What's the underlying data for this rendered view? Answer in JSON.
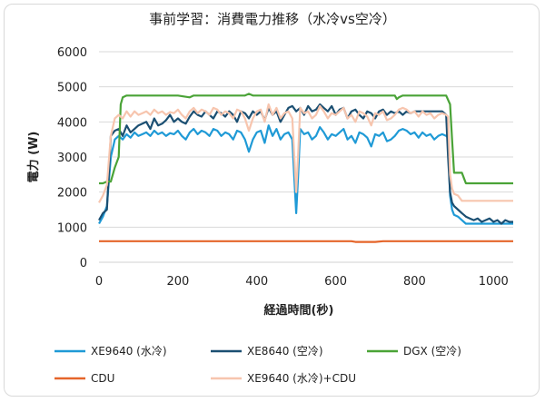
{
  "chart_data": {
    "type": "line",
    "title": "事前学習：消費電力推移（水冷vs空冷）",
    "xlabel": "経過時間(秒)",
    "ylabel": "電力 (W)",
    "xlim": [
      0,
      1050
    ],
    "ylim": [
      0,
      6000
    ],
    "x_ticks": [
      0,
      200,
      400,
      600,
      800,
      1000
    ],
    "y_ticks": [
      0,
      1000,
      2000,
      3000,
      4000,
      5000,
      6000
    ],
    "x_tick_labels": [
      "0",
      "200",
      "400",
      "600",
      "800",
      "1000"
    ],
    "y_tick_labels": [
      "0",
      "1000",
      "2000",
      "3000",
      "4000",
      "5000",
      "6000"
    ],
    "grid": "horizontal",
    "legend_position": "bottom",
    "series": [
      {
        "name": "XE9640 (水冷)",
        "color": "#1f9ad6",
        "x": [
          0,
          10,
          20,
          30,
          40,
          50,
          60,
          70,
          80,
          90,
          100,
          110,
          120,
          130,
          140,
          150,
          160,
          170,
          180,
          190,
          200,
          210,
          220,
          230,
          240,
          250,
          260,
          270,
          280,
          290,
          300,
          310,
          320,
          330,
          340,
          350,
          360,
          370,
          380,
          390,
          400,
          410,
          420,
          430,
          440,
          450,
          460,
          470,
          480,
          490,
          495,
          500,
          505,
          510,
          520,
          530,
          540,
          550,
          560,
          570,
          580,
          590,
          600,
          610,
          620,
          630,
          640,
          650,
          660,
          670,
          680,
          690,
          700,
          710,
          720,
          730,
          740,
          750,
          760,
          770,
          780,
          790,
          800,
          810,
          820,
          830,
          840,
          850,
          860,
          870,
          880,
          885,
          890,
          895,
          900,
          910,
          920,
          930,
          940,
          950,
          1000,
          1050
        ],
        "y": [
          1100,
          1300,
          1600,
          3000,
          3500,
          3600,
          3500,
          3650,
          3550,
          3700,
          3600,
          3650,
          3700,
          3600,
          3750,
          3650,
          3700,
          3600,
          3680,
          3650,
          3750,
          3600,
          3500,
          3700,
          3800,
          3650,
          3750,
          3700,
          3600,
          3800,
          3750,
          3600,
          3700,
          3650,
          3500,
          3750,
          3700,
          3500,
          3150,
          3500,
          3700,
          3750,
          3400,
          3900,
          3600,
          3800,
          3500,
          3650,
          3700,
          3500,
          2400,
          1400,
          2500,
          3800,
          3650,
          3700,
          3500,
          3600,
          3850,
          3700,
          3500,
          3650,
          3600,
          3700,
          3800,
          3500,
          3600,
          3400,
          3700,
          3650,
          3550,
          3300,
          3650,
          3600,
          3700,
          3450,
          3500,
          3600,
          3750,
          3800,
          3750,
          3650,
          3700,
          3550,
          3700,
          3600,
          3650,
          3500,
          3600,
          3650,
          3600,
          3550,
          1900,
          1500,
          1350,
          1300,
          1200,
          1100,
          1100,
          1100,
          1100,
          1100
        ]
      },
      {
        "name": "XE8640 (空冷)",
        "color": "#1b4f72",
        "x": [
          0,
          10,
          20,
          30,
          40,
          50,
          60,
          70,
          80,
          90,
          100,
          110,
          120,
          130,
          140,
          150,
          160,
          170,
          180,
          190,
          200,
          210,
          220,
          230,
          240,
          250,
          260,
          270,
          280,
          290,
          300,
          310,
          320,
          330,
          340,
          350,
          360,
          370,
          380,
          390,
          400,
          410,
          420,
          430,
          440,
          450,
          460,
          470,
          480,
          490,
          500,
          510,
          520,
          530,
          540,
          550,
          560,
          570,
          580,
          590,
          600,
          610,
          620,
          630,
          640,
          650,
          660,
          670,
          680,
          690,
          700,
          710,
          720,
          730,
          740,
          750,
          760,
          770,
          780,
          790,
          800,
          810,
          820,
          830,
          840,
          850,
          860,
          870,
          880,
          885,
          890,
          895,
          900,
          910,
          920,
          930,
          940,
          950,
          960,
          970,
          980,
          990,
          1000,
          1010,
          1020,
          1030,
          1040,
          1050
        ],
        "y": [
          1200,
          1400,
          1500,
          3600,
          3750,
          3800,
          3600,
          3900,
          3700,
          3800,
          3900,
          3950,
          4000,
          3800,
          4100,
          3900,
          3950,
          4050,
          4200,
          4000,
          4100,
          4000,
          3950,
          4150,
          4300,
          4200,
          4150,
          4300,
          4200,
          4100,
          4300,
          4250,
          4150,
          4300,
          4200,
          4000,
          4300,
          4250,
          4100,
          4300,
          4200,
          4300,
          4050,
          4400,
          4200,
          4300,
          4000,
          4200,
          4400,
          4450,
          4300,
          4400,
          4200,
          4450,
          4300,
          4350,
          4500,
          4400,
          4300,
          4450,
          4200,
          4350,
          4400,
          4100,
          4300,
          4350,
          4200,
          4100,
          4300,
          4250,
          4100,
          4300,
          4350,
          4200,
          4300,
          4250,
          4300,
          4200,
          4300,
          4250,
          4300,
          4300,
          4300,
          4300,
          4300,
          4300,
          4300,
          4300,
          4200,
          3000,
          2000,
          1700,
          1600,
          1500,
          1400,
          1300,
          1250,
          1200,
          1250,
          1150,
          1200,
          1250,
          1150,
          1200,
          1100,
          1200,
          1150,
          1150
        ]
      },
      {
        "name": "DGX (空冷)",
        "color": "#4aa337",
        "x": [
          0,
          10,
          20,
          30,
          40,
          50,
          55,
          60,
          70,
          80,
          100,
          150,
          200,
          230,
          240,
          300,
          350,
          370,
          380,
          390,
          400,
          450,
          500,
          550,
          600,
          650,
          700,
          750,
          755,
          760,
          770,
          780,
          800,
          850,
          880,
          890,
          895,
          900,
          920,
          925,
          930,
          1000,
          1050
        ],
        "y": [
          2250,
          2250,
          2300,
          2300,
          2700,
          3000,
          4500,
          4700,
          4750,
          4750,
          4750,
          4750,
          4750,
          4700,
          4750,
          4750,
          4750,
          4750,
          4800,
          4750,
          4750,
          4750,
          4750,
          4750,
          4750,
          4750,
          4750,
          4750,
          4650,
          4700,
          4750,
          4750,
          4750,
          4750,
          4750,
          4500,
          3500,
          2550,
          2550,
          2400,
          2250,
          2250,
          2250
        ]
      },
      {
        "name": "CDU",
        "color": "#e5652a",
        "x": [
          0,
          100,
          200,
          300,
          400,
          500,
          600,
          640,
          650,
          700,
          720,
          800,
          900,
          1000,
          1050
        ],
        "y": [
          600,
          600,
          600,
          600,
          600,
          600,
          600,
          600,
          580,
          580,
          600,
          600,
          600,
          600,
          600
        ]
      },
      {
        "name": "XE9640 (水冷)+CDU",
        "color": "#f7c5ae",
        "x": [
          0,
          10,
          20,
          30,
          40,
          50,
          60,
          70,
          80,
          90,
          100,
          110,
          120,
          130,
          140,
          150,
          160,
          170,
          180,
          190,
          200,
          210,
          220,
          230,
          240,
          250,
          260,
          270,
          280,
          290,
          300,
          310,
          320,
          330,
          340,
          350,
          360,
          370,
          380,
          390,
          400,
          410,
          420,
          430,
          440,
          450,
          460,
          470,
          480,
          490,
          495,
          500,
          505,
          510,
          520,
          530,
          540,
          550,
          560,
          570,
          580,
          590,
          600,
          610,
          620,
          630,
          640,
          650,
          660,
          670,
          680,
          690,
          700,
          710,
          720,
          730,
          740,
          750,
          760,
          770,
          780,
          790,
          800,
          810,
          820,
          830,
          840,
          850,
          860,
          870,
          880,
          885,
          890,
          895,
          900,
          910,
          920,
          1000,
          1050
        ],
        "y": [
          1700,
          1900,
          2200,
          3600,
          4100,
          4200,
          4100,
          4300,
          4150,
          4300,
          4200,
          4250,
          4300,
          4200,
          4350,
          4250,
          4300,
          4200,
          4280,
          4250,
          4350,
          4200,
          4100,
          4300,
          4400,
          4250,
          4350,
          4300,
          4200,
          4400,
          4350,
          4200,
          4300,
          4250,
          4100,
          4350,
          4300,
          4100,
          3750,
          4100,
          4300,
          4350,
          4000,
          4500,
          4200,
          4400,
          4100,
          4250,
          4300,
          4100,
          3000,
          2000,
          3100,
          4400,
          4250,
          4300,
          4100,
          4200,
          4450,
          4300,
          4100,
          4250,
          4200,
          4300,
          4400,
          4100,
          4200,
          4000,
          4300,
          4250,
          4150,
          3900,
          4250,
          4200,
          4300,
          4050,
          4100,
          4200,
          4350,
          4400,
          4350,
          4250,
          4300,
          4150,
          4300,
          4200,
          4250,
          4100,
          4200,
          4250,
          4200,
          4150,
          2500,
          2100,
          1950,
          1900,
          1750,
          1750,
          1750
        ]
      }
    ]
  }
}
